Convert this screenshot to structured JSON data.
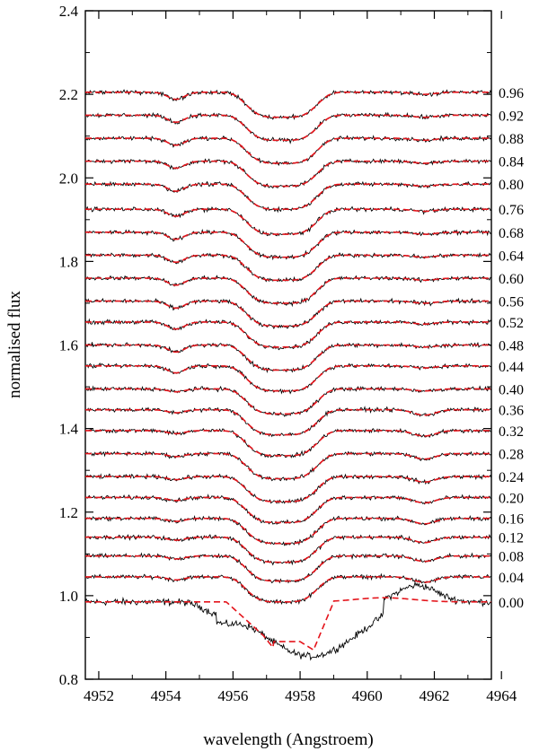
{
  "chart_data": {
    "type": "line",
    "xlabel": "wavelength (Angstroem)",
    "ylabel": "normalised flux",
    "xlim": [
      4951.6,
      4963.7
    ],
    "ylim": [
      0.8,
      2.4
    ],
    "x_ticks": [
      4952,
      4954,
      4956,
      4958,
      4960,
      4962,
      4964
    ],
    "x_tick_labels": [
      "4952",
      "4954",
      "4956",
      "4958",
      "4960",
      "4962",
      "4964"
    ],
    "y_ticks": [
      0.8,
      1.0,
      1.2,
      1.4,
      1.6,
      1.8,
      2.0,
      2.2,
      2.4
    ],
    "y_tick_labels": [
      "0.8",
      "1.0",
      "1.2",
      "1.4",
      "1.6",
      "1.8",
      "2.0",
      "2.2",
      "2.4"
    ],
    "grid": false,
    "legend": "none",
    "colors": {
      "observed": "#000000",
      "model": "#e4141b"
    },
    "line_styles": {
      "observed": "solid",
      "model": "dashed"
    },
    "series": [
      {
        "phase": "0.00",
        "continuum": 0.985
      },
      {
        "phase": "0.04",
        "continuum": 1.045
      },
      {
        "phase": "0.08",
        "continuum": 1.095
      },
      {
        "phase": "0.12",
        "continuum": 1.14
      },
      {
        "phase": "0.16",
        "continuum": 1.185
      },
      {
        "phase": "0.20",
        "continuum": 1.235
      },
      {
        "phase": "0.24",
        "continuum": 1.285
      },
      {
        "phase": "0.28",
        "continuum": 1.34
      },
      {
        "phase": "0.32",
        "continuum": 1.395
      },
      {
        "phase": "0.36",
        "continuum": 1.445
      },
      {
        "phase": "0.40",
        "continuum": 1.495
      },
      {
        "phase": "0.44",
        "continuum": 1.55
      },
      {
        "phase": "0.48",
        "continuum": 1.6
      },
      {
        "phase": "0.52",
        "continuum": 1.655
      },
      {
        "phase": "0.56",
        "continuum": 1.705
      },
      {
        "phase": "0.60",
        "continuum": 1.76
      },
      {
        "phase": "0.64",
        "continuum": 1.815
      },
      {
        "phase": "0.68",
        "continuum": 1.87
      },
      {
        "phase": "0.76",
        "continuum": 1.925
      },
      {
        "phase": "0.80",
        "continuum": 1.985
      },
      {
        "phase": "0.84",
        "continuum": 2.04
      },
      {
        "phase": "0.88",
        "continuum": 2.095
      },
      {
        "phase": "0.92",
        "continuum": 2.15
      },
      {
        "phase": "0.96",
        "continuum": 2.205
      }
    ]
  }
}
